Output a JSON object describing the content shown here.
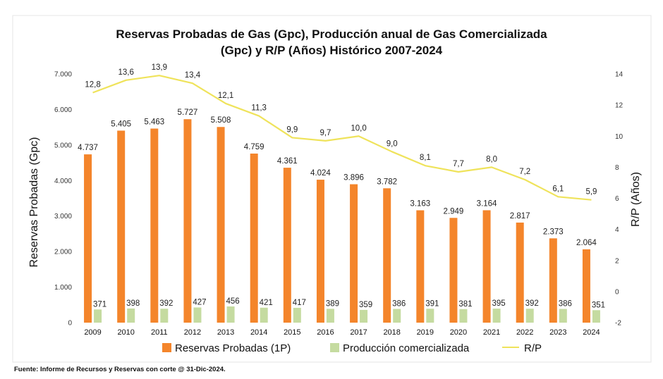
{
  "chart_data": {
    "type": "bar",
    "title_line1": "Reservas Probadas de Gas (Gpc), Producción anual de Gas Comercializada",
    "title_line2": "(Gpc) y R/P (Años) Histórico 2007-2024",
    "ylabel_left": "Reservas Probadas (Gpc)",
    "ylabel_right": "R/P (Años)",
    "ylim_left": [
      0,
      7000
    ],
    "ylim_right": [
      -2,
      14
    ],
    "left_ticks": [
      "0",
      "1.000",
      "2.000",
      "3.000",
      "4.000",
      "5.000",
      "6.000",
      "7.000"
    ],
    "right_ticks": [
      "-2",
      "0",
      "2",
      "4",
      "6",
      "8",
      "10",
      "12",
      "14"
    ],
    "categories": [
      "2009",
      "2010",
      "2011",
      "2012",
      "2013",
      "2014",
      "2015",
      "2016",
      "2017",
      "2018",
      "2019",
      "2020",
      "2021",
      "2022",
      "2023",
      "2024"
    ],
    "series": [
      {
        "name": "Reservas Probadas (1P)",
        "axis": "left",
        "kind": "bar",
        "color": "#F4852B",
        "values": [
          4737,
          5405,
          5463,
          5727,
          5508,
          4759,
          4361,
          4024,
          3896,
          3782,
          3163,
          2949,
          3164,
          2817,
          2373,
          2064
        ],
        "labels": [
          "4.737",
          "5.405",
          "5.463",
          "5.727",
          "5.508",
          "4.759",
          "4.361",
          "4.024",
          "3.896",
          "3.782",
          "3.163",
          "2.949",
          "3.164",
          "2.817",
          "2.373",
          "2.064"
        ]
      },
      {
        "name": "Producción comercializada",
        "axis": "left",
        "kind": "bar",
        "color": "#C5DBA0",
        "values": [
          371,
          398,
          392,
          427,
          456,
          421,
          417,
          389,
          359,
          386,
          391,
          381,
          395,
          392,
          386,
          351
        ],
        "labels": [
          "371",
          "398",
          "392",
          "427",
          "456",
          "421",
          "417",
          "389",
          "359",
          "386",
          "391",
          "381",
          "395",
          "392",
          "386",
          "351"
        ]
      },
      {
        "name": "R/P",
        "axis": "right",
        "kind": "line",
        "color": "#EFE35B",
        "values": [
          12.8,
          13.6,
          13.9,
          13.4,
          12.1,
          11.3,
          9.9,
          9.7,
          10.0,
          9.0,
          8.1,
          7.7,
          8.0,
          7.2,
          6.1,
          5.9
        ],
        "labels": [
          "12,8",
          "13,6",
          "13,9",
          "13,4",
          "12,1",
          "11,3",
          "9,9",
          "9,7",
          "10,0",
          "9,0",
          "8,1",
          "7,7",
          "8,0",
          "7,2",
          "6,1",
          "5,9"
        ]
      }
    ],
    "grid": false,
    "legend_position": "bottom"
  },
  "source_note": "Fuente: Informe de Recursos y Reservas con corte @ 31-Dic-2024."
}
